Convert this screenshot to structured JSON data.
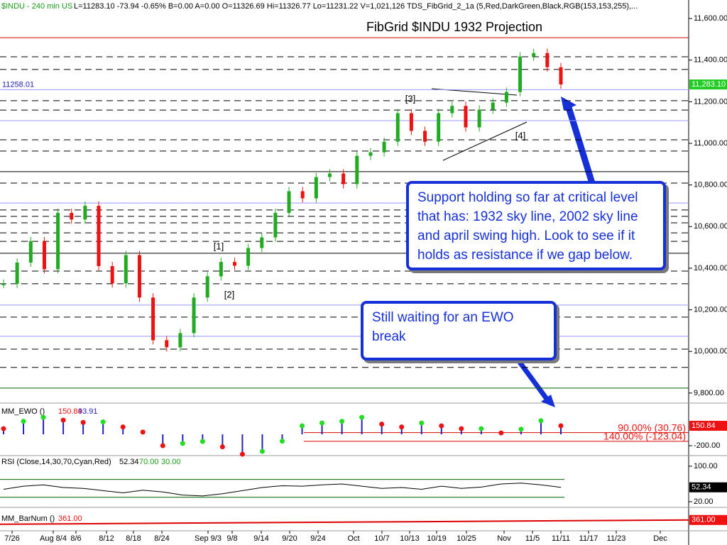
{
  "header": {
    "symbol": "$INDU - 240 min  US",
    "stats": "L=11283.10  -73.94   -0.65%  B=0.00  A=0.00  O=11326.69  Hi=11326.77  Lo=11231.22  V=1,021,126  TDS_FibGrid_2_1a (5,Red,DarkGreen,Black,RGB(153,153,255),..."
  },
  "callouts": [
    "Support holding so far at critical level that has: 1932 sky line, 2002 sky line and april swing high.  Look to see if it holds as resistance if we gap below.",
    "Still waiting for an EWO break"
  ],
  "chart_data": [
    {
      "type": "candlestick",
      "title": "FibGrid $INDU 1932 Projection",
      "categories": [
        "7/26",
        "Aug 8/4",
        "8/6",
        "8/12",
        "8/18",
        "8/24",
        "Sep 9/3",
        "9/8",
        "9/14",
        "9/20",
        "9/24",
        "Oct",
        "10/7",
        "10/13",
        "10/19",
        "10/25",
        "Nov",
        "11/5",
        "11/11",
        "11/17",
        "11/23",
        "Dec"
      ],
      "closes": [
        10325,
        10427,
        10530,
        10395,
        10666,
        10634,
        10700,
        10410,
        10327,
        10463,
        10259,
        10054,
        10020,
        10088,
        10259,
        10361,
        10430,
        10412,
        10497,
        10548,
        10666,
        10770,
        10736,
        10838,
        10855,
        10804,
        10940,
        10957,
        11008,
        11145,
        11060,
        11008,
        11145,
        11180,
        11077,
        11162,
        11196,
        11247,
        11417,
        11434,
        11366,
        11283.1
      ],
      "ylim": [
        9762,
        11689
      ],
      "yticks": [
        {
          "value": 11600,
          "label": "11,600.00"
        },
        {
          "value": 11400,
          "label": "11,400.00"
        },
        {
          "value": 11200,
          "label": "11,200.00"
        },
        {
          "value": 11000,
          "label": "11,000.00"
        },
        {
          "value": 10800,
          "label": "10,800.00"
        },
        {
          "value": 10600,
          "label": "10,600.00"
        },
        {
          "value": 10400,
          "label": "10,400.00"
        },
        {
          "value": 10200,
          "label": "10,200.00"
        },
        {
          "value": 10000,
          "label": "10,000.00"
        },
        {
          "value": 9800,
          "label": "9,800.00"
        }
      ],
      "levels": [
        {
          "value": 11508,
          "style": "red"
        },
        {
          "value": 11416,
          "style": "dashed"
        },
        {
          "value": 11355,
          "style": "dashed"
        },
        {
          "value": 11258.01,
          "style": "blue"
        },
        {
          "value": 11205,
          "style": "dashed"
        },
        {
          "value": 11160,
          "style": "dashed"
        },
        {
          "value": 11109,
          "style": "blue"
        },
        {
          "value": 11017,
          "style": "dashed"
        },
        {
          "value": 10963,
          "style": "dashed"
        },
        {
          "value": 10864,
          "style": "black"
        },
        {
          "value": 10809,
          "style": "dashed"
        },
        {
          "value": 10713,
          "style": "blue"
        },
        {
          "value": 10680,
          "style": "dashed"
        },
        {
          "value": 10649,
          "style": "dashed"
        },
        {
          "value": 10618,
          "style": "dashed"
        },
        {
          "value": 10570,
          "style": "dashed"
        },
        {
          "value": 10529,
          "style": "dashed"
        },
        {
          "value": 10472,
          "style": "black"
        },
        {
          "value": 10386,
          "style": "dashed"
        },
        {
          "value": 10325,
          "style": "dashed"
        },
        {
          "value": 10223,
          "style": "blue"
        },
        {
          "value": 10165,
          "style": "dashed"
        },
        {
          "value": 10073,
          "style": "blue"
        },
        {
          "value": 10011,
          "style": "dashed"
        },
        {
          "value": 9923,
          "style": "dashed"
        },
        {
          "value": 9824,
          "style": "green"
        }
      ],
      "last": {
        "value": 11283.1,
        "label": "11,283.10"
      },
      "up_color": "#22aa22",
      "down_color": "#ee1111",
      "annotations": [
        "[1]",
        "[2]",
        "[3]",
        "[4]"
      ]
    },
    {
      "type": "ewo",
      "name": "MM_EWO ()",
      "last": 150.84,
      "signal": 93.91,
      "values": [
        100,
        230,
        300,
        250,
        210,
        220,
        130,
        40,
        -200,
        -160,
        -125,
        -220,
        -350,
        -300,
        -120,
        150,
        200,
        230,
        300,
        180,
        130,
        200,
        150,
        100,
        100,
        25,
        90,
        240,
        150.84
      ],
      "ylim": [
        -374,
        501
      ],
      "yticks": [
        {
          "value": -200,
          "label": "-200.00"
        }
      ],
      "levels": [
        {
          "value": 30.76,
          "label": "90.00% (30.76)"
        },
        {
          "value": -123.04,
          "label": "140.00% (-123.04)"
        }
      ],
      "up_color": "#22dd22",
      "down_color": "#ee1111",
      "hist_color": "#2222bb"
    },
    {
      "type": "rsi",
      "name": "RSI (Close,14,30,70,Cyan,Red)",
      "last": 52.34,
      "overbought": {
        "value": 70,
        "label": "70.00"
      },
      "oversold": {
        "value": 30,
        "label": "30.00"
      },
      "values": [
        48,
        55,
        58,
        52,
        50,
        45,
        40,
        46,
        42,
        35,
        33,
        38,
        45,
        52,
        56,
        55,
        58,
        60,
        55,
        50,
        52,
        48,
        55,
        50,
        53,
        60,
        62,
        58,
        52.34
      ],
      "ylim": [
        12,
        119
      ],
      "yticks": [
        {
          "value": 100,
          "label": "100.00"
        },
        {
          "value": 20,
          "label": "20.00"
        }
      ]
    },
    {
      "type": "barnum",
      "name": "MM_BarNum ()",
      "last": {
        "value": 361,
        "label": "361.00"
      },
      "ylim": [
        300,
        420
      ]
    }
  ]
}
